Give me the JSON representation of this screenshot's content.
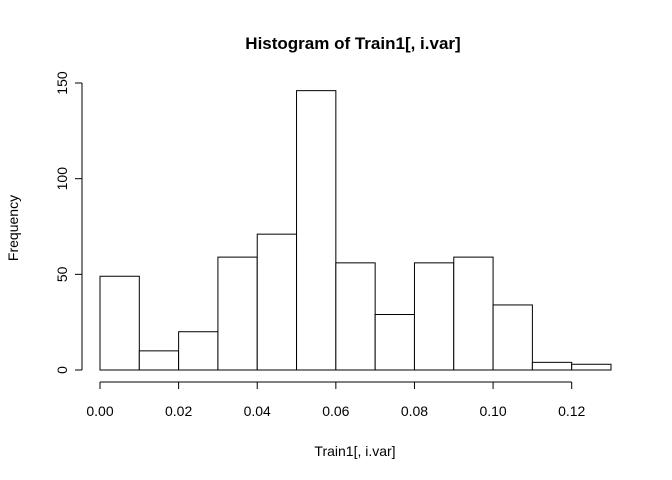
{
  "chart_data": {
    "type": "bar",
    "title": "Histogram of Train1[, i.var]",
    "xlabel": "Train1[, i.var]",
    "ylabel": "Frequency",
    "bins": [
      {
        "start": 0.0,
        "end": 0.01,
        "value": 49
      },
      {
        "start": 0.01,
        "end": 0.02,
        "value": 10
      },
      {
        "start": 0.02,
        "end": 0.03,
        "value": 20
      },
      {
        "start": 0.03,
        "end": 0.04,
        "value": 59
      },
      {
        "start": 0.04,
        "end": 0.05,
        "value": 71
      },
      {
        "start": 0.05,
        "end": 0.06,
        "value": 146
      },
      {
        "start": 0.06,
        "end": 0.07,
        "value": 56
      },
      {
        "start": 0.07,
        "end": 0.08,
        "value": 29
      },
      {
        "start": 0.08,
        "end": 0.09,
        "value": 56
      },
      {
        "start": 0.09,
        "end": 0.1,
        "value": 59
      },
      {
        "start": 0.1,
        "end": 0.11,
        "value": 34
      },
      {
        "start": 0.11,
        "end": 0.12,
        "value": 4
      },
      {
        "start": 0.12,
        "end": 0.13,
        "value": 3
      }
    ],
    "xlim": [
      0.0,
      0.13
    ],
    "ylim": [
      0,
      150
    ],
    "x_ticks": [
      0.0,
      0.02,
      0.04,
      0.06,
      0.08,
      0.1,
      0.12
    ],
    "x_tick_labels": [
      "0.00",
      "0.02",
      "0.04",
      "0.06",
      "0.08",
      "0.10",
      "0.12"
    ],
    "y_ticks": [
      0,
      50,
      100,
      150
    ],
    "y_tick_labels": [
      "0",
      "50",
      "100",
      "150"
    ],
    "grid": false,
    "legend": "none",
    "colors": {
      "bar_fill": "#ffffff",
      "bar_stroke": "#000000",
      "axis": "#000000",
      "text": "#000000",
      "background": "#ffffff"
    }
  }
}
